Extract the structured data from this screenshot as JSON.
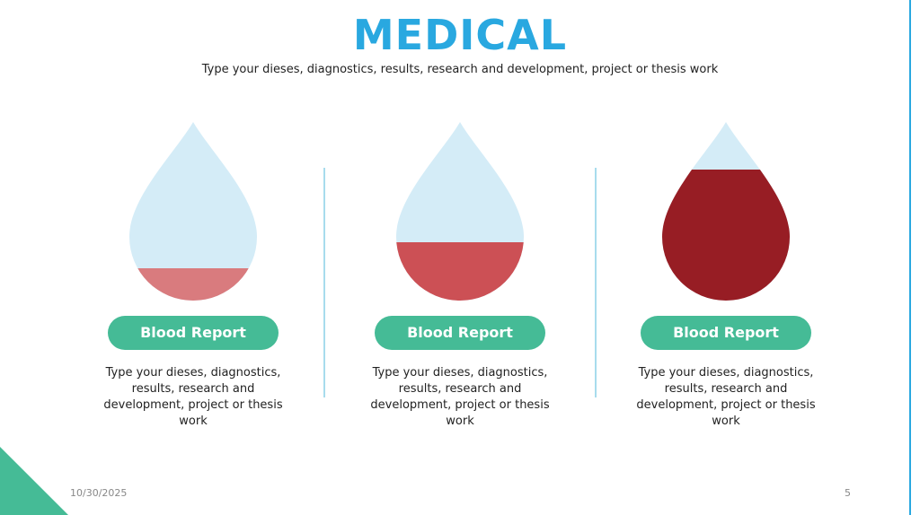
{
  "header": {
    "title": "MEDICAL",
    "subtitle": "Type your dieses, diagnostics, results, research and development, project or thesis work"
  },
  "cards": [
    {
      "label": "Blood Report",
      "text": "Type your dieses, diagnostics, results, research and development, project or thesis work"
    },
    {
      "label": "Blood Report",
      "text": "Type your dieses, diagnostics, results, research and development, project or thesis work"
    },
    {
      "label": "Blood Report",
      "text": "Type your dieses, diagnostics, results, research and development, project or thesis work"
    }
  ],
  "footer": {
    "date": "10/30/2025",
    "page": "5"
  }
}
